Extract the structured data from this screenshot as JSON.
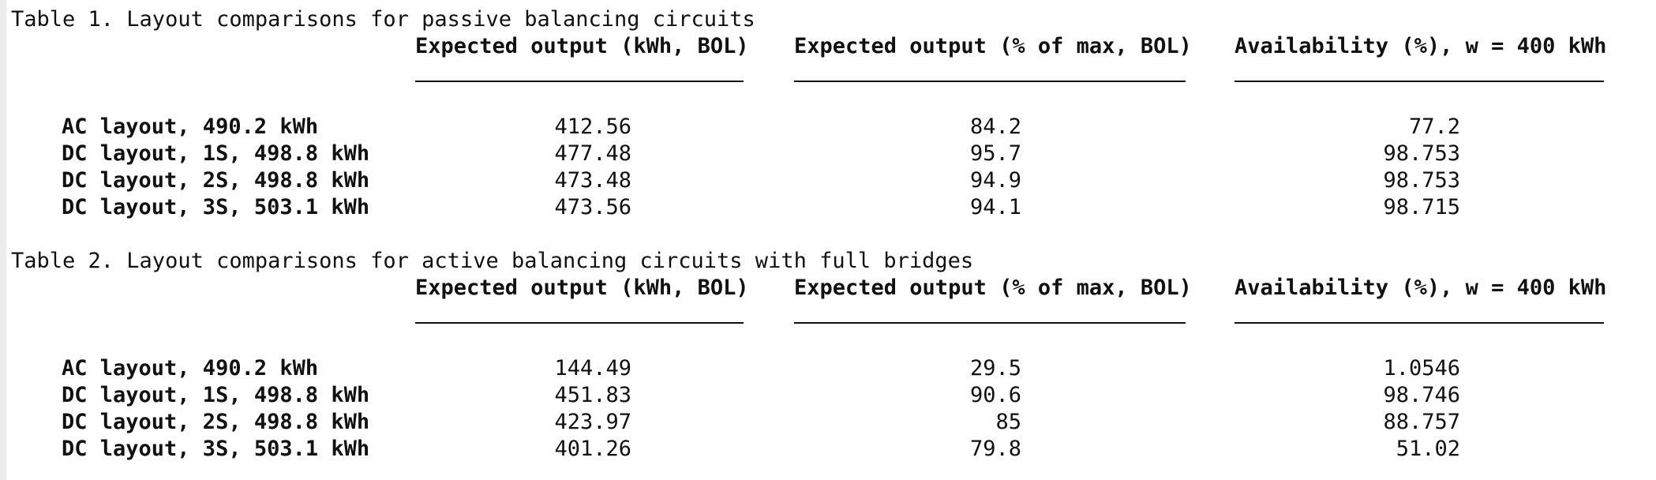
{
  "tables": [
    {
      "caption": "Table 1. Layout comparisons for passive balancing circuits",
      "headers": [
        "Expected output (kWh, BOL)",
        "Expected output (% of max, BOL)",
        "Availability (%), w = 400 kWh"
      ],
      "rows": [
        {
          "label": "AC layout, 490.2 kWh",
          "cells": [
            "412.56",
            "84.2",
            "77.2"
          ]
        },
        {
          "label": "DC layout, 1S, 498.8 kWh",
          "cells": [
            "477.48",
            "95.7",
            "98.753"
          ]
        },
        {
          "label": "DC layout, 2S, 498.8 kWh",
          "cells": [
            "473.48",
            "94.9",
            "98.753"
          ]
        },
        {
          "label": "DC layout, 3S, 503.1 kWh",
          "cells": [
            "473.56",
            "94.1",
            "98.715"
          ]
        }
      ]
    },
    {
      "caption": "Table 2. Layout comparisons for active balancing circuits with full bridges",
      "headers": [
        "Expected output (kWh, BOL)",
        "Expected output (% of max, BOL)",
        "Availability (%), w = 400 kWh"
      ],
      "rows": [
        {
          "label": "AC layout, 490.2 kWh",
          "cells": [
            "144.49",
            "29.5",
            "1.0546"
          ]
        },
        {
          "label": "DC layout, 1S, 498.8 kWh",
          "cells": [
            "451.83",
            "90.6",
            "98.746"
          ]
        },
        {
          "label": "DC layout, 2S, 498.8 kWh",
          "cells": [
            "423.97",
            "85",
            "88.757"
          ]
        },
        {
          "label": "DC layout, 3S, 503.1 kWh",
          "cells": [
            "401.26",
            "79.8",
            "51.02"
          ]
        }
      ]
    }
  ]
}
